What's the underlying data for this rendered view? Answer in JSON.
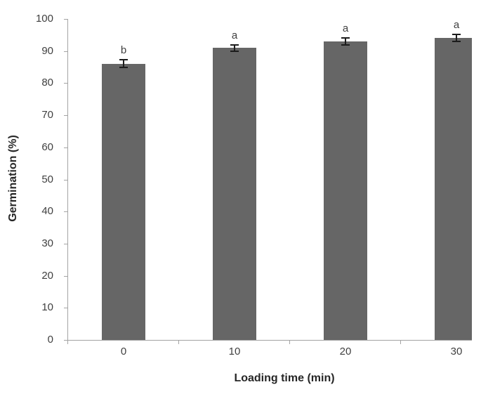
{
  "chart_data": {
    "type": "bar",
    "title": "",
    "xlabel": "Loading time (min)",
    "ylabel": "Germination (%)",
    "categories": [
      "0",
      "10",
      "20",
      "30"
    ],
    "values": [
      86,
      91,
      93,
      94
    ],
    "errors": [
      1.2,
      1.0,
      1.0,
      1.1
    ],
    "sig_letters": [
      "b",
      "a",
      "a",
      "a"
    ],
    "ylim": [
      0,
      100
    ],
    "ytick_step": 10,
    "ytick_labels": [
      "0",
      "10",
      "20",
      "30",
      "40",
      "50",
      "60",
      "70",
      "80",
      "90",
      "100"
    ],
    "grid": "off",
    "legend": "none",
    "colors": {
      "bar_fill": "#666666",
      "error_bar": "#1c1c1c",
      "axis_line": "#a3a3a3",
      "tick_text": "#3f3f3f",
      "axis_title_text": "#262626",
      "sig_letter_text": "#404040",
      "background": "#ffffff"
    }
  }
}
